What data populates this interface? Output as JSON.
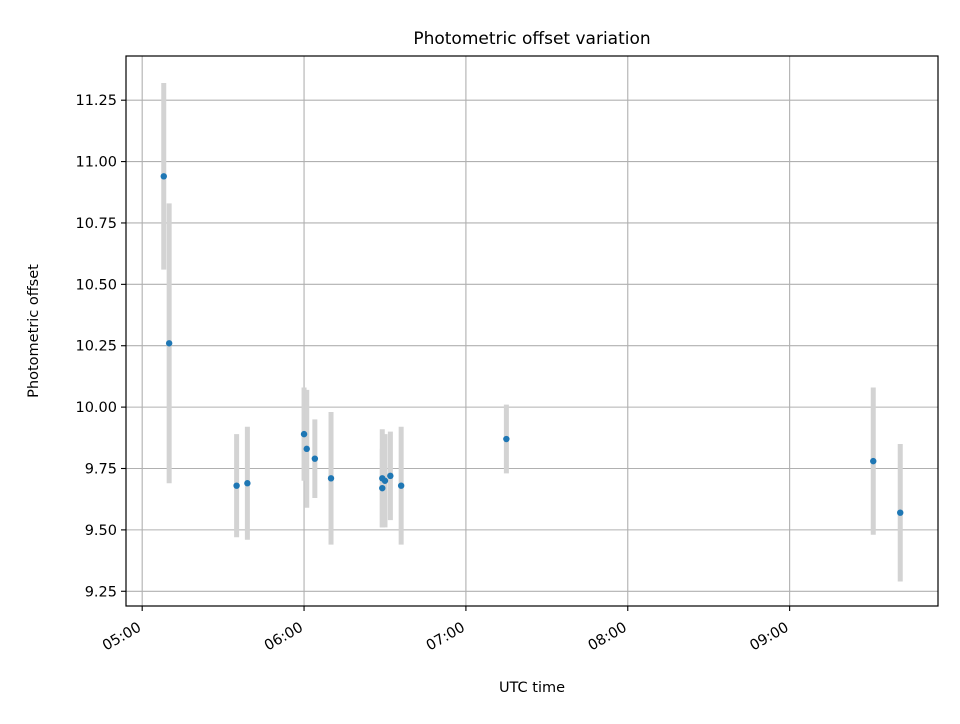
{
  "chart_data": {
    "type": "scatter",
    "title": "Photometric offset variation",
    "xlabel": "UTC time",
    "ylabel": "Photometric offset",
    "xlim": [
      "04:54",
      "09:55"
    ],
    "ylim": [
      9.19,
      11.43
    ],
    "x_ticks": [
      "05:00",
      "06:00",
      "07:00",
      "08:00",
      "09:00"
    ],
    "y_ticks": [
      "9.25",
      "9.50",
      "9.75",
      "10.00",
      "10.25",
      "10.50",
      "10.75",
      "11.00",
      "11.25"
    ],
    "grid": true,
    "legend": "none",
    "colors": {
      "point": "#1f77b4",
      "errorbar": "#d3d3d3",
      "grid": "#b0b0b0",
      "axes": "#000000"
    },
    "points": [
      {
        "time": "05:08",
        "y": 10.94,
        "err": 0.38
      },
      {
        "time": "05:10",
        "y": 10.26,
        "err": 0.57
      },
      {
        "time": "05:35",
        "y": 9.68,
        "err": 0.21
      },
      {
        "time": "05:39",
        "y": 9.69,
        "err": 0.23
      },
      {
        "time": "06:00",
        "y": 9.89,
        "err": 0.19
      },
      {
        "time": "06:01",
        "y": 9.83,
        "err": 0.24
      },
      {
        "time": "06:04",
        "y": 9.79,
        "err": 0.16
      },
      {
        "time": "06:10",
        "y": 9.71,
        "err": 0.27
      },
      {
        "time": "06:29",
        "y": 9.71,
        "err": 0.2
      },
      {
        "time": "06:29",
        "y": 9.67,
        "err": 0.16
      },
      {
        "time": "06:30",
        "y": 9.7,
        "err": 0.19
      },
      {
        "time": "06:32",
        "y": 9.72,
        "err": 0.18
      },
      {
        "time": "06:36",
        "y": 9.68,
        "err": 0.24
      },
      {
        "time": "07:15",
        "y": 9.87,
        "err": 0.14
      },
      {
        "time": "09:31",
        "y": 9.78,
        "err": 0.3
      },
      {
        "time": "09:41",
        "y": 9.57,
        "err": 0.28
      }
    ]
  }
}
